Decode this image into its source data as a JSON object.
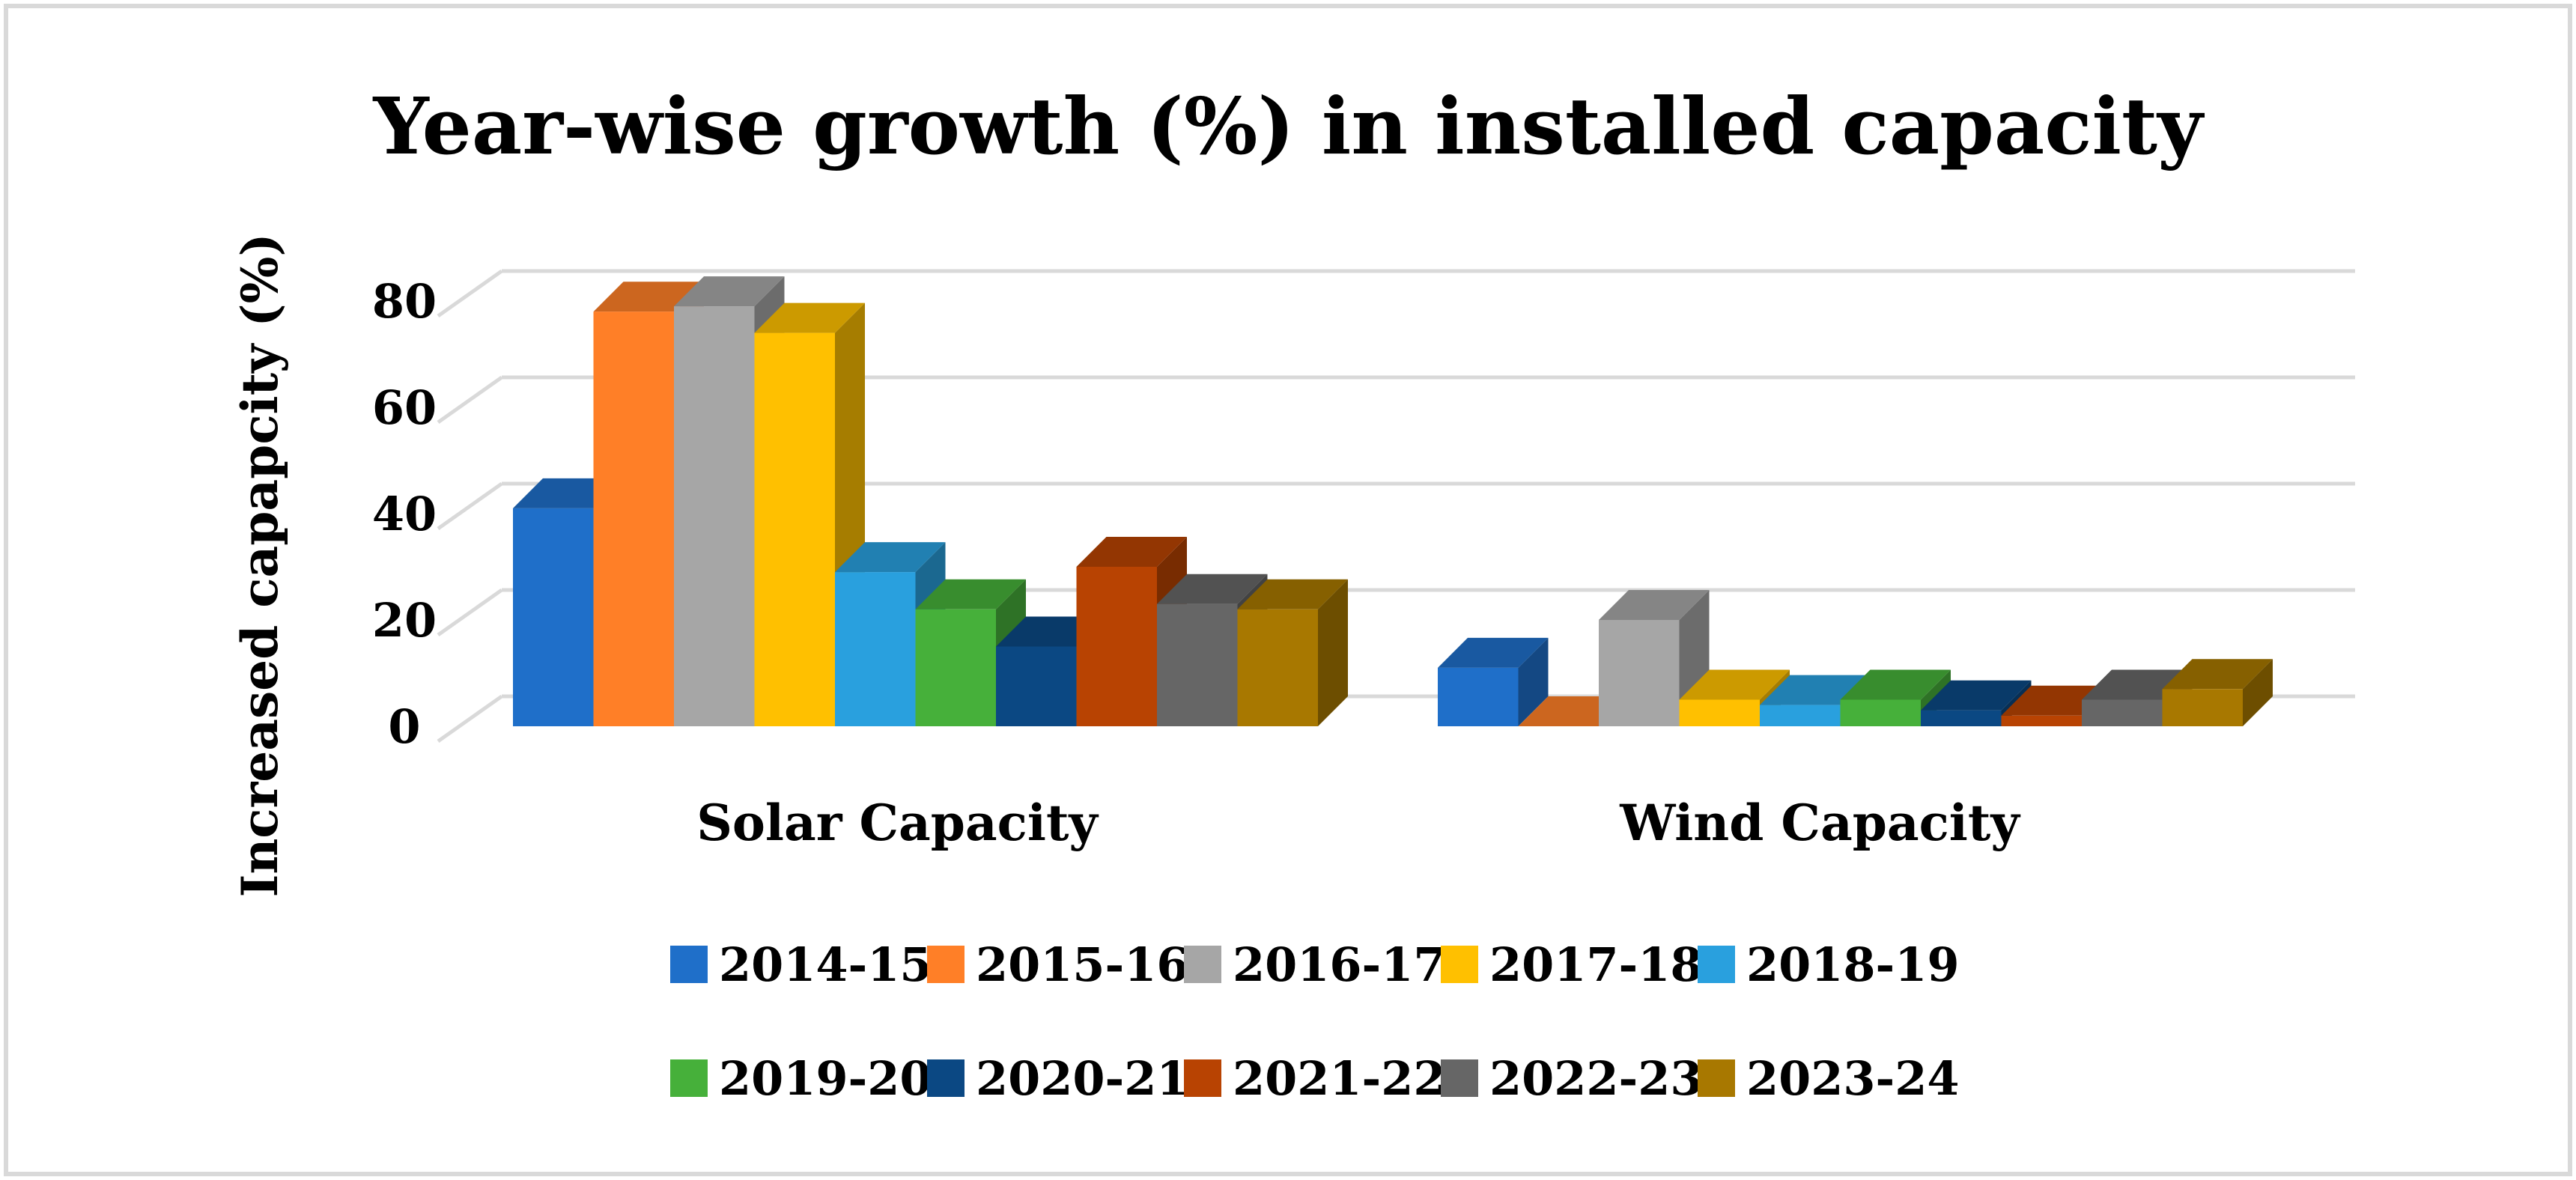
{
  "chart_data": {
    "type": "bar",
    "title": "Year-wise growth (%) in installed capacity",
    "xlabel": "",
    "ylabel": "Increased capapcity (%)",
    "ylim": [
      0,
      80
    ],
    "yticks": [
      0,
      20,
      40,
      60,
      80
    ],
    "grid": true,
    "legend_position": "bottom",
    "categories": [
      "Solar Capacity",
      "Wind Capacity"
    ],
    "series": [
      {
        "name": "2014-15",
        "color": "#1F6FC9",
        "values": [
          41,
          11
        ]
      },
      {
        "name": "2015-16",
        "color": "#FF7F27",
        "values": [
          78,
          0
        ]
      },
      {
        "name": "2016-17",
        "color": "#A6A6A6",
        "values": [
          79,
          20
        ]
      },
      {
        "name": "2017-18",
        "color": "#FFC000",
        "values": [
          74,
          5
        ]
      },
      {
        "name": "2018-19",
        "color": "#29A0DE",
        "values": [
          29,
          4
        ]
      },
      {
        "name": "2019-20",
        "color": "#46B03A",
        "values": [
          22,
          5
        ]
      },
      {
        "name": "2020-21",
        "color": "#0B4883",
        "values": [
          15,
          3
        ]
      },
      {
        "name": "2021-22",
        "color": "#B84302",
        "values": [
          30,
          2
        ]
      },
      {
        "name": "2022-23",
        "color": "#666666",
        "values": [
          23,
          5
        ]
      },
      {
        "name": "2023-24",
        "color": "#A87800",
        "values": [
          22,
          7
        ]
      }
    ]
  }
}
